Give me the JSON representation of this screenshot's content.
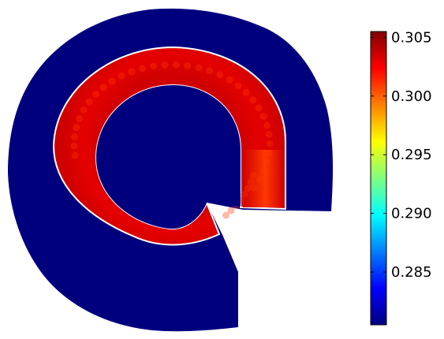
{
  "chart_data": {
    "type": "heatmap",
    "title": "",
    "xlabel": "",
    "ylabel": "",
    "colormap": "jet",
    "colorbar": {
      "range": [
        0.2805,
        0.3055
      ],
      "ticks": [
        0.285,
        0.29,
        0.295,
        0.3,
        0.305
      ],
      "tick_labels": [
        "0.285",
        "0.290",
        "0.295",
        "0.300",
        "0.305"
      ],
      "placement": "right"
    },
    "regions": [
      {
        "name": "outer-domain",
        "value": 0.2805
      },
      {
        "name": "inner-domain",
        "value": 0.2805
      },
      {
        "name": "ring-channel",
        "value": 0.303,
        "edge_value": 0.3035,
        "min_value": 0.301,
        "max_value": 0.3055
      }
    ]
  },
  "colors": {
    "background": "#ffffff",
    "outline": "#ffffff",
    "jet_stops": [
      "#00007f",
      "#0000ff",
      "#007fff",
      "#00ffff",
      "#7fff7f",
      "#ffff00",
      "#ff7f00",
      "#ff0000",
      "#7f0000"
    ]
  }
}
